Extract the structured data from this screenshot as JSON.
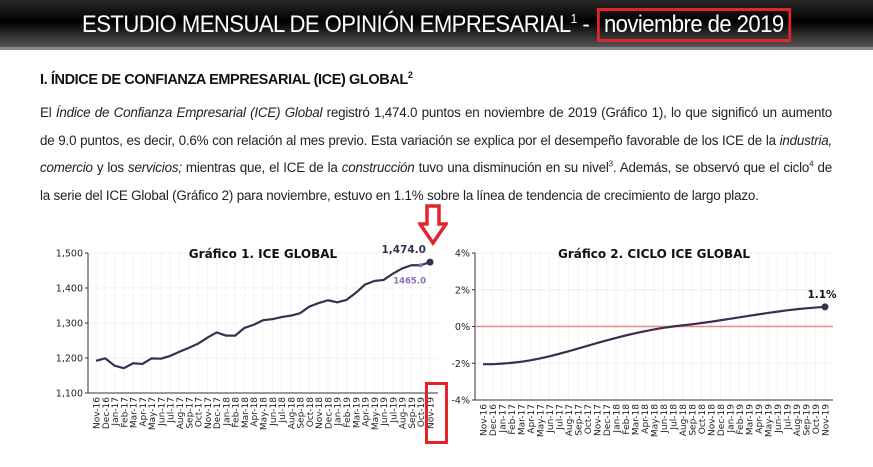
{
  "header": {
    "title": "ESTUDIO MENSUAL DE OPINIÓN EMPRESARIAL",
    "sup": "1",
    "dash": "-",
    "highlight": "noviembre de 2019"
  },
  "section": {
    "title": "I. ÍNDICE DE CONFIANZA EMPRESARIAL (ICE) GLOBAL",
    "sup": "2"
  },
  "paragraph": {
    "p1": "El ",
    "p2": "Índice de Confianza Empresarial (ICE) Global",
    "p3": " registró 1,474.0 puntos en noviembre de 2019 (Gráfico 1), lo que significó un aumento de 9.0 puntos, es decir, 0.6% con relación al mes previo. Esta variación se explica por el desempeño favorable de los ICE de la ",
    "p4": "industria, comercio",
    "p5": " y los ",
    "p6": "servicios;",
    "p7": " mientras que, el ICE de la ",
    "p8": "construcción",
    "p9": " tuvo una disminución en su nivel",
    "s3": "3",
    "p10": ". Además, se observó que el ciclo",
    "s4": "4",
    "p11": " de la serie del ICE Global (Gráfico 2) para noviembre, estuvo en 1.1% sobre la línea de tendencia de crecimiento de largo plazo."
  },
  "colors": {
    "line": "#3b2f4f",
    "prev": "#8a6fb5",
    "zero": "#e88a8a",
    "highlight": "#e3242b"
  },
  "chart_data": [
    {
      "type": "line",
      "title": "Gráfico 1. ICE GLOBAL",
      "ylim": [
        1100,
        1500
      ],
      "yticks": [
        "1,100",
        "1,200",
        "1,300",
        "1,400",
        "1,500"
      ],
      "categories": [
        "Nov-16",
        "Dec-16",
        "Jan-17",
        "Feb-17",
        "Mar-17",
        "Apr-17",
        "May-17",
        "Jun-17",
        "Jul-17",
        "Aug-17",
        "Sep-17",
        "Oct-17",
        "Nov-17",
        "Dec-17",
        "Jan-18",
        "Feb-18",
        "Mar-18",
        "Apr-18",
        "May-18",
        "Jun-18",
        "Jul-18",
        "Aug-18",
        "Sep-18",
        "Oct-18",
        "Nov-18",
        "Dec-18",
        "Jan-19",
        "Feb-19",
        "Mar-19",
        "Apr-19",
        "May-19",
        "Jun-19",
        "Jul-19",
        "Aug-19",
        "Sep-19",
        "Oct-19",
        "Nov-19"
      ],
      "values": [
        1192,
        1199,
        1178,
        1171,
        1185,
        1183,
        1199,
        1198,
        1206,
        1218,
        1229,
        1241,
        1258,
        1273,
        1264,
        1264,
        1286,
        1295,
        1308,
        1311,
        1317,
        1321,
        1328,
        1347,
        1357,
        1365,
        1359,
        1366,
        1386,
        1410,
        1420,
        1423,
        1441,
        1456,
        1465,
        1465,
        1474
      ],
      "last_label": "1,474.0",
      "prev_label": "1465.0",
      "prev_value": 1465,
      "grid": true
    },
    {
      "type": "line",
      "title": "Gráfico 2. CICLO ICE GLOBAL",
      "ylim": [
        -4,
        4
      ],
      "yticks": [
        "-4%",
        "-2%",
        "0%",
        "2%",
        "4%"
      ],
      "categories": [
        "Nov-16",
        "Dec-16",
        "Jan-17",
        "Feb-17",
        "Mar-17",
        "Apr-17",
        "May-17",
        "Jun-17",
        "Jul-17",
        "Aug-17",
        "Sep-17",
        "Oct-17",
        "Nov-17",
        "Dec-17",
        "Jan-18",
        "Feb-18",
        "Mar-18",
        "Apr-18",
        "May-18",
        "Jun-18",
        "Jul-18",
        "Aug-18",
        "Sep-18",
        "Oct-18",
        "Nov-18",
        "Dec-18",
        "Jan-19",
        "Feb-19",
        "Mar-19",
        "Apr-19",
        "May-19",
        "Jun-19",
        "Jul-19",
        "Aug-19",
        "Sep-19",
        "Oct-19",
        "Nov-19"
      ],
      "values": [
        -2.05,
        -2.05,
        -2.02,
        -1.98,
        -1.92,
        -1.84,
        -1.74,
        -1.62,
        -1.49,
        -1.35,
        -1.2,
        -1.05,
        -0.9,
        -0.76,
        -0.62,
        -0.49,
        -0.37,
        -0.26,
        -0.16,
        -0.07,
        0.0,
        0.06,
        0.12,
        0.19,
        0.26,
        0.34,
        0.42,
        0.5,
        0.58,
        0.66,
        0.74,
        0.81,
        0.88,
        0.94,
        0.99,
        1.03,
        1.07
      ],
      "last_label": "1.1%",
      "reference_line": 0,
      "grid": true
    }
  ]
}
